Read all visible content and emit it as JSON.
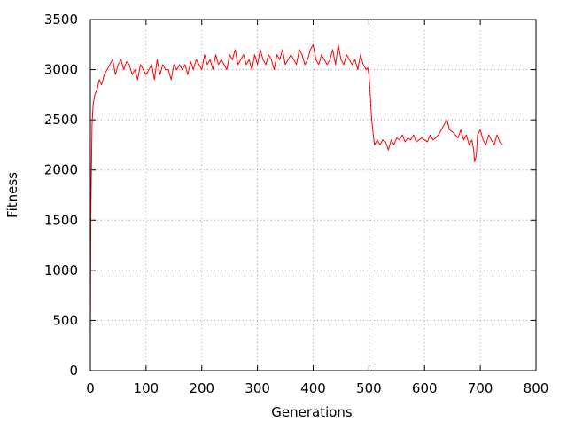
{
  "chart_data": {
    "type": "line",
    "title": "",
    "xlabel": "Generations",
    "ylabel": "Fitness",
    "xlim": [
      0,
      800
    ],
    "ylim": [
      0,
      3500
    ],
    "xticks": [
      0,
      100,
      200,
      300,
      400,
      500,
      600,
      700,
      800
    ],
    "yticks": [
      0,
      500,
      1000,
      1500,
      2000,
      2500,
      3000,
      3500
    ],
    "xtick_labels": [
      "0",
      "100",
      "200",
      "300",
      "400",
      "500",
      "600",
      "700",
      "800"
    ],
    "ytick_labels": [
      "0",
      "500",
      "1000",
      "1500",
      "2000",
      "2500",
      "3000",
      "3500"
    ],
    "grid": true,
    "legend": "none",
    "line_color": "#ff0000",
    "series": [
      {
        "x": [
          0,
          1,
          3,
          5,
          8,
          12,
          16,
          20,
          25,
          30,
          35,
          40,
          45,
          50,
          55,
          60,
          65,
          70,
          75,
          80,
          85,
          90,
          95,
          100,
          105,
          110,
          115,
          120,
          125,
          130,
          135,
          140,
          145,
          150,
          155,
          160,
          165,
          170,
          175,
          180,
          185,
          190,
          195,
          200,
          205,
          210,
          215,
          220,
          225,
          230,
          235,
          240,
          245,
          250,
          255,
          260,
          265,
          270,
          275,
          280,
          285,
          290,
          295,
          300,
          305,
          310,
          315,
          320,
          325,
          330,
          335,
          340,
          345,
          350,
          355,
          360,
          365,
          370,
          375,
          380,
          385,
          390,
          395,
          400,
          405,
          410,
          415,
          420,
          425,
          430,
          435,
          440,
          445,
          450,
          455,
          460,
          465,
          470,
          475,
          480,
          485,
          490,
          495,
          498,
          500,
          502,
          505,
          508,
          510,
          515,
          520,
          525,
          530,
          535,
          540,
          545,
          550,
          555,
          560,
          565,
          570,
          575,
          580,
          585,
          590,
          595,
          600,
          605,
          610,
          615,
          620,
          625,
          630,
          635,
          640,
          645,
          650,
          655,
          660,
          665,
          670,
          675,
          680,
          685,
          688,
          690,
          693,
          695,
          700,
          705,
          710,
          715,
          720,
          725,
          730,
          735,
          740
        ],
        "y": [
          300,
          1600,
          2450,
          2650,
          2750,
          2800,
          2900,
          2850,
          2950,
          3000,
          3050,
          3100,
          2950,
          3050,
          3100,
          3000,
          3080,
          3050,
          2950,
          3000,
          2900,
          3050,
          3000,
          2950,
          3000,
          3050,
          2900,
          3100,
          2950,
          3050,
          3000,
          3000,
          2900,
          3050,
          3000,
          3050,
          3000,
          3050,
          2950,
          3080,
          3000,
          3100,
          3050,
          3000,
          3150,
          3050,
          3100,
          3000,
          3150,
          3050,
          3100,
          3050,
          3000,
          3150,
          3100,
          3200,
          3050,
          3100,
          3150,
          3050,
          3100,
          3000,
          3150,
          3050,
          3200,
          3100,
          3050,
          3150,
          3100,
          3000,
          3150,
          3100,
          3200,
          3050,
          3100,
          3150,
          3100,
          3050,
          3200,
          3150,
          3050,
          3100,
          3200,
          3250,
          3100,
          3050,
          3150,
          3100,
          3050,
          3100,
          3200,
          3050,
          3250,
          3100,
          3050,
          3150,
          3100,
          3050,
          3100,
          3000,
          3150,
          3050,
          3000,
          3020,
          2950,
          2800,
          2500,
          2350,
          2250,
          2300,
          2250,
          2300,
          2280,
          2200,
          2300,
          2250,
          2320,
          2300,
          2350,
          2280,
          2320,
          2300,
          2350,
          2280,
          2300,
          2320,
          2300,
          2280,
          2350,
          2300,
          2320,
          2350,
          2400,
          2450,
          2500,
          2400,
          2380,
          2350,
          2320,
          2400,
          2300,
          2350,
          2250,
          2300,
          2200,
          2080,
          2150,
          2350,
          2400,
          2300,
          2250,
          2350,
          2300,
          2250,
          2350,
          2280,
          2250
        ]
      }
    ]
  }
}
